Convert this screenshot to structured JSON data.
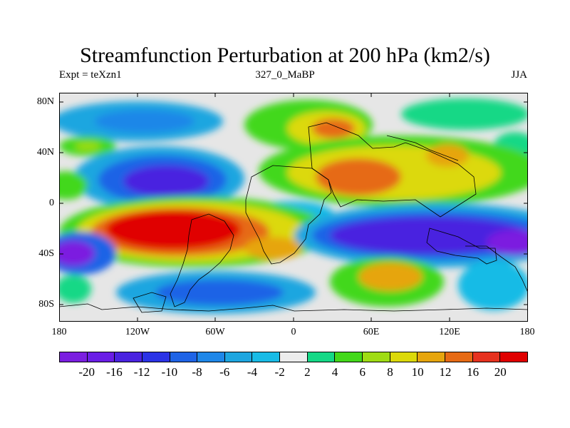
{
  "title": "Streamfunction Perturbation at 200 hPa (km2/s)",
  "subtitle": {
    "left": "Expt = teXzn1",
    "center": "327_0_MaBP",
    "right": "JJA"
  },
  "lat_labels": [
    "80N",
    "40N",
    "0",
    "40S",
    "80S"
  ],
  "lon_labels": [
    "180",
    "120W",
    "60W",
    "0",
    "60E",
    "120E",
    "180"
  ],
  "colorbar": {
    "labels": [
      "-20",
      "-16",
      "-12",
      "-10",
      "-8",
      "-6",
      "-4",
      "-2",
      "2",
      "4",
      "6",
      "8",
      "10",
      "12",
      "16",
      "20"
    ],
    "colors": [
      "#7b1fe0",
      "#6a1ee6",
      "#4a23e0",
      "#2b33e6",
      "#1f64e6",
      "#1f87e8",
      "#1ea6e0",
      "#19bbe6",
      "#ececec",
      "#15d886",
      "#43d81a",
      "#9fdc14",
      "#dcd90a",
      "#e6a50d",
      "#e66a14",
      "#e6321f",
      "#e00000"
    ]
  }
}
